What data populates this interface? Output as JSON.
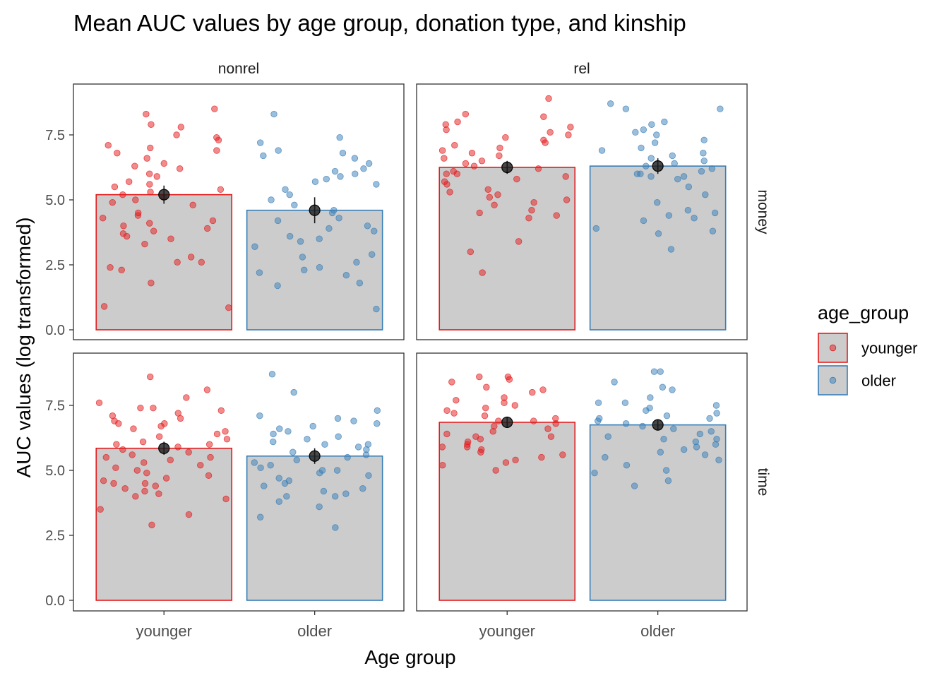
{
  "chart_data": {
    "type": "bar",
    "title": "Mean AUC values by age group, donation type, and kinship",
    "xlabel": "Age group",
    "ylabel": "AUC values (log transformed)",
    "categories": [
      "younger",
      "older"
    ],
    "column_facets": [
      "nonrel",
      "rel"
    ],
    "row_facets": [
      "money",
      "time"
    ],
    "yticks": [
      "0.0",
      "2.5",
      "5.0",
      "7.5"
    ],
    "ylim": [
      -0.3,
      9.3
    ],
    "grid": false,
    "legend": {
      "title": "age_group",
      "position": "right",
      "entries": [
        "younger",
        "older"
      ]
    },
    "colors": {
      "younger": "#e41a1c",
      "older": "#377eb8",
      "bar_fill": "#cccccc",
      "mean_point": "#1a1a1a"
    },
    "panels": [
      {
        "col": "nonrel",
        "row": "money",
        "means": [
          5.2,
          4.6
        ],
        "errors": [
          [
            4.85,
            5.55
          ],
          [
            4.1,
            5.1
          ]
        ],
        "points": {
          "younger": [
            8.5,
            7.3,
            7.1,
            7.0,
            6.9,
            6.8,
            6.6,
            6.4,
            6.2,
            5.7,
            5.5,
            5.4,
            5.3,
            5.2,
            5.1,
            5.0,
            4.9,
            4.8,
            4.5,
            4.4,
            4.3,
            4.2,
            4.0,
            3.9,
            3.8,
            3.7,
            3.5,
            3.3,
            2.8,
            2.6,
            2.4,
            2.3,
            1.8,
            0.9,
            0.85,
            8.3,
            7.8,
            7.5,
            7.4,
            6.3,
            6.0,
            5.9,
            4.1,
            2.6,
            7.9,
            5.6,
            3.6
          ],
          "older": [
            8.3,
            7.4,
            7.2,
            6.9,
            6.8,
            6.6,
            6.4,
            6.2,
            6.0,
            5.9,
            5.8,
            5.7,
            5.6,
            5.4,
            5.2,
            5.0,
            4.8,
            4.5,
            4.3,
            4.2,
            4.0,
            3.8,
            3.6,
            3.5,
            3.4,
            3.2,
            2.9,
            2.8,
            2.6,
            2.4,
            2.3,
            2.2,
            2.1,
            1.8,
            1.7,
            0.8,
            6.7,
            6.1,
            4.6,
            3.9
          ]
        }
      },
      {
        "col": "rel",
        "row": "money",
        "means": [
          6.25,
          6.3
        ],
        "errors": [
          [
            6.0,
            6.5
          ],
          [
            6.0,
            6.6
          ]
        ],
        "points": {
          "younger": [
            8.9,
            8.3,
            8.2,
            8.0,
            7.8,
            7.7,
            7.5,
            7.4,
            7.3,
            7.2,
            7.1,
            7.0,
            6.9,
            6.8,
            6.7,
            6.6,
            6.5,
            6.4,
            6.3,
            6.2,
            6.1,
            6.0,
            5.9,
            5.8,
            5.6,
            5.4,
            5.3,
            5.2,
            5.1,
            5.0,
            4.9,
            4.8,
            4.6,
            4.5,
            4.4,
            4.3,
            3.4,
            3.0,
            2.2,
            7.9,
            7.6,
            6.0,
            5.7
          ],
          "older": [
            8.7,
            8.5,
            8.5,
            8.0,
            7.7,
            7.6,
            7.5,
            7.3,
            7.2,
            7.0,
            6.9,
            6.8,
            6.7,
            6.6,
            6.5,
            6.4,
            6.3,
            6.2,
            6.1,
            6.0,
            5.9,
            5.8,
            5.5,
            5.2,
            4.9,
            4.5,
            4.4,
            4.3,
            4.2,
            3.9,
            3.8,
            3.7,
            3.1,
            6.0,
            5.9,
            4.6,
            7.9
          ]
        }
      },
      {
        "col": "nonrel",
        "row": "time",
        "means": [
          5.85,
          5.55
        ],
        "errors": [
          [
            5.6,
            6.1
          ],
          [
            5.25,
            5.85
          ]
        ],
        "points": {
          "younger": [
            8.6,
            8.1,
            7.8,
            7.6,
            7.4,
            7.4,
            7.3,
            7.2,
            7.1,
            7.0,
            6.9,
            6.8,
            6.7,
            6.6,
            6.5,
            6.4,
            6.3,
            6.2,
            6.1,
            6.0,
            5.9,
            5.8,
            5.7,
            5.6,
            5.5,
            5.4,
            5.3,
            5.2,
            5.1,
            5.0,
            4.9,
            4.8,
            4.7,
            4.6,
            4.5,
            4.4,
            4.3,
            4.2,
            4.1,
            4.0,
            3.9,
            3.5,
            3.3,
            2.9,
            6.8,
            6.0,
            5.5,
            4.5
          ],
          "older": [
            8.7,
            8.0,
            7.3,
            7.1,
            7.0,
            6.9,
            6.8,
            6.7,
            6.6,
            6.5,
            6.4,
            6.3,
            6.2,
            6.1,
            6.0,
            5.9,
            5.8,
            5.7,
            5.6,
            5.5,
            5.4,
            5.3,
            5.2,
            5.1,
            5.0,
            4.9,
            4.8,
            4.7,
            4.6,
            4.5,
            4.4,
            4.3,
            4.2,
            4.1,
            4.0,
            3.8,
            3.6,
            3.2,
            2.8,
            6.0,
            5.0,
            4.0
          ]
        }
      },
      {
        "col": "rel",
        "row": "time",
        "means": [
          6.85,
          6.75
        ],
        "errors": [
          [
            6.65,
            7.05
          ],
          [
            6.55,
            6.95
          ]
        ],
        "points": {
          "younger": [
            8.6,
            8.6,
            8.5,
            8.4,
            8.2,
            8.1,
            8.0,
            7.8,
            7.6,
            7.5,
            7.4,
            7.3,
            7.2,
            7.1,
            7.0,
            6.9,
            6.8,
            6.7,
            6.6,
            6.5,
            6.4,
            6.3,
            6.2,
            6.1,
            6.0,
            5.9,
            5.8,
            5.7,
            5.6,
            5.5,
            5.4,
            5.3,
            5.2,
            5.0,
            7.7,
            6.9,
            6.3,
            5.9
          ],
          "older": [
            8.8,
            8.8,
            8.4,
            8.2,
            8.1,
            7.8,
            7.6,
            7.5,
            7.4,
            7.3,
            7.2,
            7.1,
            7.0,
            6.9,
            6.8,
            6.7,
            6.6,
            6.5,
            6.4,
            6.3,
            6.2,
            6.1,
            6.0,
            5.9,
            5.8,
            5.7,
            5.6,
            5.4,
            5.2,
            5.0,
            4.9,
            4.6,
            4.4,
            7.6,
            7.0,
            6.2,
            5.5
          ]
        }
      }
    ]
  }
}
